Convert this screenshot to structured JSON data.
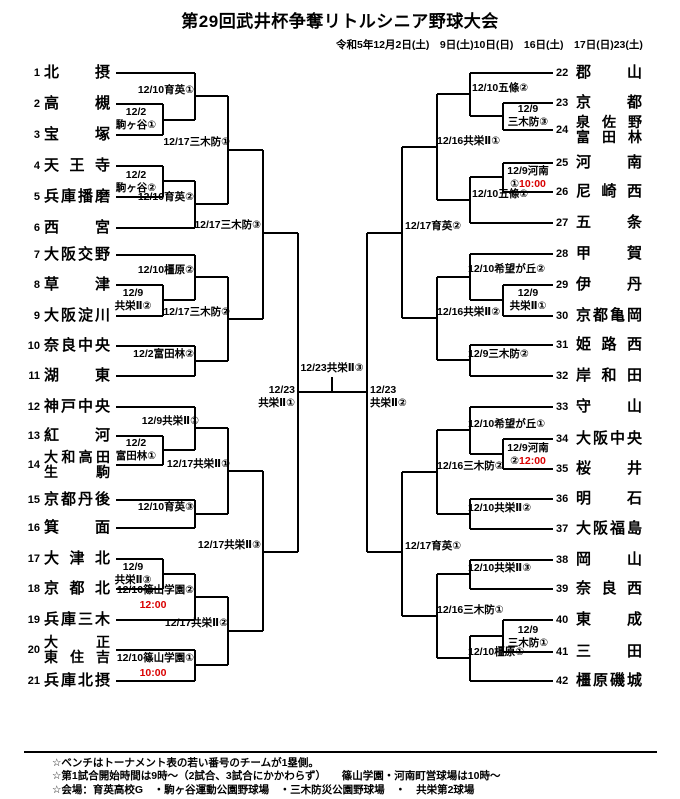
{
  "title": "第29回武井杯争奪リトルシニア野球大会",
  "date_line": "令和5年12月2日(土)　9日(土)10日(日)　16日(土)　17日(日)23(土)",
  "colors": {
    "line": "#000000",
    "time_red": "#d90000"
  },
  "teams_left": [
    {
      "no": "1",
      "name": "北摂"
    },
    {
      "no": "2",
      "name": "高槻"
    },
    {
      "no": "3",
      "name": "宝塚"
    },
    {
      "no": "4",
      "name": "天王寺"
    },
    {
      "no": "5",
      "name": "兵庫播磨"
    },
    {
      "no": "6",
      "name": "西宮"
    },
    {
      "no": "7",
      "name": "大阪交野"
    },
    {
      "no": "8",
      "name": "草津"
    },
    {
      "no": "9",
      "name": "大阪淀川"
    },
    {
      "no": "10",
      "name": "奈良中央"
    },
    {
      "no": "11",
      "name": "湖東"
    },
    {
      "no": "12",
      "name": "神戸中央"
    },
    {
      "no": "13",
      "name": "紅河"
    },
    {
      "no": "14",
      "name": "大和高田|生駒"
    },
    {
      "no": "15",
      "name": "京都丹後"
    },
    {
      "no": "16",
      "name": "箕面"
    },
    {
      "no": "17",
      "name": "大津北"
    },
    {
      "no": "18",
      "name": "京都北"
    },
    {
      "no": "19",
      "name": "兵庫三木"
    },
    {
      "no": "20",
      "name": "大正|東住吉"
    },
    {
      "no": "21",
      "name": "兵庫北摂"
    }
  ],
  "teams_right": [
    {
      "no": "22",
      "name": "郡山"
    },
    {
      "no": "23",
      "name": "京都"
    },
    {
      "no": "24",
      "name": "泉佐野|富田林"
    },
    {
      "no": "25",
      "name": "河南"
    },
    {
      "no": "26",
      "name": "尼崎西"
    },
    {
      "no": "27",
      "name": "五条"
    },
    {
      "no": "28",
      "name": "甲賀"
    },
    {
      "no": "29",
      "name": "伊丹"
    },
    {
      "no": "30",
      "name": "京都亀岡"
    },
    {
      "no": "31",
      "name": "姫路西"
    },
    {
      "no": "32",
      "name": "岸和田"
    },
    {
      "no": "33",
      "name": "守山"
    },
    {
      "no": "34",
      "name": "大阪中央"
    },
    {
      "no": "35",
      "name": "桜井"
    },
    {
      "no": "36",
      "name": "明石"
    },
    {
      "no": "37",
      "name": "大阪福島"
    },
    {
      "no": "38",
      "name": "岡山"
    },
    {
      "no": "39",
      "name": "奈良西"
    },
    {
      "no": "40",
      "name": "東成"
    },
    {
      "no": "41",
      "name": "三田"
    },
    {
      "no": "42",
      "name": "橿原磯城"
    }
  ],
  "labels": [
    {
      "lines": [
        "12/10育英①"
      ]
    },
    {
      "lines": [
        "12/2",
        "駒ヶ谷①"
      ]
    },
    {
      "lines": [
        "12/17三木防①"
      ]
    },
    {
      "lines": [
        "12/2",
        "駒ヶ谷②"
      ]
    },
    {
      "lines": [
        "12/10育英②"
      ]
    },
    {
      "lines": [
        "12/17三木防③"
      ]
    },
    {
      "lines": [
        "12/10橿原②"
      ]
    },
    {
      "lines": [
        "12/9",
        "共栄Ⅱ②"
      ]
    },
    {
      "lines": [
        "12/17三木防②"
      ]
    },
    {
      "lines": [
        "12/2富田林②"
      ]
    },
    {
      "lines": [
        "12/23",
        "共栄Ⅱ①"
      ]
    },
    {
      "lines": [
        "12/9共栄Ⅱ①"
      ]
    },
    {
      "lines": [
        "12/2",
        "富田林①"
      ]
    },
    {
      "lines": [
        "12/17共栄Ⅱ①"
      ]
    },
    {
      "lines": [
        "12/10育英③"
      ]
    },
    {
      "lines": [
        "12/17共栄Ⅱ③"
      ]
    },
    {
      "lines": [
        "12/9",
        "共栄Ⅱ③"
      ]
    },
    {
      "lines": [
        "12/10篠山学園②"
      ]
    },
    {
      "lines": [
        "12:00"
      ],
      "red": "12:00"
    },
    {
      "lines": [
        "12/17共栄Ⅱ②"
      ]
    },
    {
      "lines": [
        "12/10篠山学園①"
      ]
    },
    {
      "lines": [
        "10:00"
      ],
      "red": "10:00"
    },
    {
      "lines": [
        "12/23共栄Ⅱ③"
      ]
    },
    {
      "lines": [
        "12/10五條②"
      ]
    },
    {
      "lines": [
        "12/9",
        "三木防③"
      ]
    },
    {
      "lines": [
        "12/16共栄Ⅱ①"
      ]
    },
    {
      "lines": [
        "12/9河南",
        "①10:00"
      ],
      "red": "10:00"
    },
    {
      "lines": [
        "12/10五條①"
      ]
    },
    {
      "lines": [
        "12/17育英②"
      ]
    },
    {
      "lines": [
        "12/10希望が丘②"
      ]
    },
    {
      "lines": [
        "12/9",
        "共栄Ⅱ①"
      ]
    },
    {
      "lines": [
        "12/16共栄Ⅱ②"
      ]
    },
    {
      "lines": [
        "12/9三木防②"
      ]
    },
    {
      "lines": [
        "12/23",
        "共栄Ⅱ②"
      ]
    },
    {
      "lines": [
        "12/10希望が丘①"
      ]
    },
    {
      "lines": [
        "12/9河南",
        "②12:00"
      ],
      "red": "12:00"
    },
    {
      "lines": [
        "12/16三木防②"
      ]
    },
    {
      "lines": [
        "12/10共栄Ⅱ②"
      ]
    },
    {
      "lines": [
        "12/17育英①"
      ]
    },
    {
      "lines": [
        "12/10共栄Ⅱ③"
      ]
    },
    {
      "lines": [
        "12/16三木防①"
      ]
    },
    {
      "lines": [
        "12/9",
        "三木防①"
      ]
    },
    {
      "lines": [
        "12/10橿原①"
      ]
    }
  ],
  "footer": {
    "notes": [
      "☆ベンチはトーナメント表の若い番号のチームが1塁側。",
      "☆第1試合開始時間は9時～（2試合、3試合にかかわらず）　　篠山学園・河南町営球場は10時～",
      "☆会場：育英高校G　・駒ヶ谷運動公園野球場　・三木防災公園野球場　・　共栄第2球場"
    ]
  }
}
